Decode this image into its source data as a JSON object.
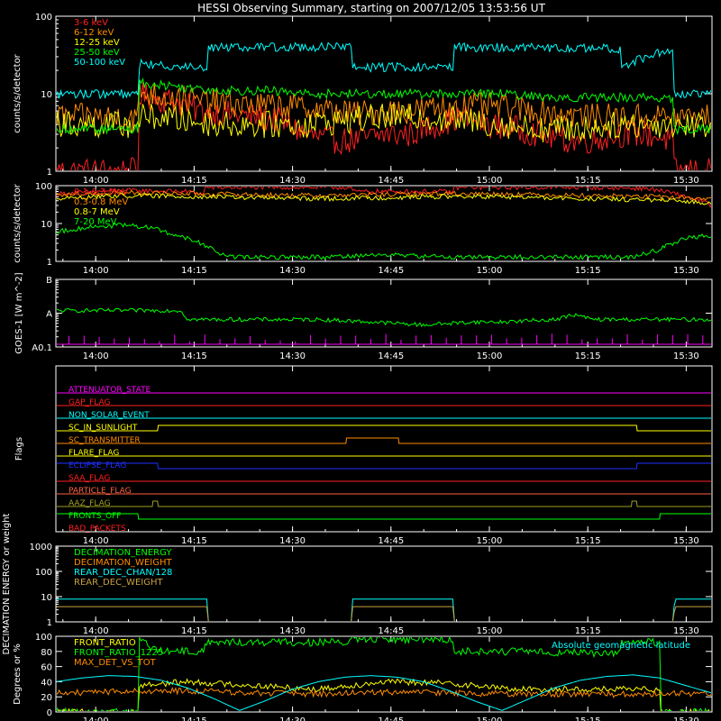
{
  "title": "HESSI Observing Summary, starting on 2007/12/05 13:53:56 UT",
  "colors": {
    "background": "#000000",
    "axes": "#ffffff",
    "red": "#ff2020",
    "orange": "#ff8c00",
    "yellow": "#ffff00",
    "green": "#00ff00",
    "cyan": "#00ffff",
    "magenta": "#ff00ff",
    "blue": "#2030ff",
    "olive": "#a0a020",
    "salmon": "#ff6040",
    "brown": "#c8a040"
  },
  "chart_data": [
    {
      "type": "line",
      "id": "lowenergy",
      "ylabel": "counts/s/detector",
      "yscale": "log",
      "ylim": [
        1,
        100
      ],
      "yticks": [
        1,
        10,
        100
      ],
      "ytick_labels": [
        "1",
        "10",
        "100"
      ],
      "x_ticks": [
        "14:00",
        "14:15",
        "14:30",
        "14:45",
        "15:00",
        "15:15",
        "15:30"
      ],
      "x_tick_minutes": [
        6.07,
        21.07,
        36.07,
        51.07,
        66.07,
        81.07,
        96.07
      ],
      "xlim_minutes": [
        0,
        100
      ],
      "legend_position": "top-left",
      "series": [
        {
          "name": "3-6 keV",
          "color": "red",
          "x": [
            0,
            12.5,
            12.6,
            14,
            18,
            22,
            26,
            30,
            34,
            38,
            42,
            46,
            50,
            54,
            58,
            62,
            66,
            70,
            74,
            78,
            82,
            86,
            90,
            94,
            94.1,
            100
          ],
          "y": [
            1,
            1,
            10,
            9,
            8,
            6,
            5.5,
            5,
            4.5,
            3,
            2.5,
            2.5,
            3,
            3,
            4,
            5,
            4,
            3.5,
            3,
            2.5,
            2.5,
            3,
            3,
            2.5,
            1,
            1
          ]
        },
        {
          "name": "6-12 keV",
          "color": "orange",
          "x": [
            0,
            12.5,
            12.6,
            14,
            18,
            22,
            26,
            30,
            34,
            38,
            42,
            46,
            50,
            54,
            58,
            62,
            66,
            70,
            74,
            78,
            82,
            86,
            90,
            94,
            94.1,
            100
          ],
          "y": [
            5,
            5,
            11,
            10,
            9,
            8,
            7.5,
            7,
            7,
            6.5,
            6,
            5.5,
            6,
            6,
            6.5,
            7,
            7,
            6.5,
            6,
            5.5,
            5,
            5,
            5,
            5,
            5,
            5
          ]
        },
        {
          "name": "12-25 keV",
          "color": "yellow",
          "x": [
            0,
            12.5,
            12.6,
            16,
            20,
            26,
            32,
            38,
            44,
            50,
            56,
            62,
            68,
            74,
            80,
            86,
            92,
            94,
            94.1,
            100
          ],
          "y": [
            4,
            4,
            5,
            5,
            4.5,
            4,
            4,
            4,
            4.5,
            5,
            5,
            4.5,
            4,
            3.5,
            3.5,
            4,
            4,
            4,
            4,
            4
          ]
        },
        {
          "name": "25-50 keV",
          "color": "green",
          "x": [
            0,
            12.5,
            12.6,
            16,
            20,
            26,
            32,
            38,
            44,
            50,
            56,
            62,
            68,
            74,
            80,
            86,
            92,
            94,
            94.1,
            100
          ],
          "y": [
            3.5,
            3.5,
            14,
            13,
            12,
            11,
            11,
            10,
            10,
            10,
            10,
            10,
            10,
            9,
            9,
            9,
            9,
            8,
            3.5,
            3.5
          ]
        },
        {
          "name": "50-100 keV",
          "color": "cyan",
          "x": [
            0,
            12.5,
            12.6,
            23,
            23.1,
            45,
            45.1,
            60.5,
            60.6,
            86,
            86.1,
            94,
            94.1,
            100
          ],
          "y": [
            10,
            10,
            24,
            22,
            40,
            40,
            22,
            22,
            40,
            38,
            22,
            38,
            10,
            10
          ]
        }
      ]
    },
    {
      "type": "line",
      "id": "highenergy",
      "ylabel": "counts/s/detector",
      "yscale": "log",
      "ylim": [
        1,
        100
      ],
      "yticks": [
        1,
        10,
        100
      ],
      "ytick_labels": [
        "1",
        "10",
        "100"
      ],
      "x_ticks": [
        "14:00",
        "14:15",
        "14:30",
        "14:45",
        "15:00",
        "15:15",
        "15:30"
      ],
      "x_tick_minutes": [
        6.07,
        21.07,
        36.07,
        51.07,
        66.07,
        81.07,
        96.07
      ],
      "xlim_minutes": [
        0,
        100
      ],
      "legend_position": "top-left",
      "series": [
        {
          "name": "0.1-0.3 MeV",
          "color": "red",
          "x": [
            0,
            10,
            20,
            22.5,
            22.6,
            45,
            45.1,
            60.5,
            60.6,
            80,
            90,
            100
          ],
          "y": [
            60,
            75,
            70,
            60,
            90,
            90,
            70,
            70,
            90,
            90,
            85,
            30
          ]
        },
        {
          "name": "0.3-0.8 MeV",
          "color": "orange",
          "x": [
            0,
            10,
            20,
            30,
            40,
            50,
            60,
            70,
            80,
            90,
            100
          ],
          "y": [
            55,
            65,
            62,
            58,
            55,
            58,
            62,
            60,
            55,
            52,
            45
          ]
        },
        {
          "name": "0.8-7 MeV",
          "color": "yellow",
          "x": [
            0,
            10,
            20,
            30,
            40,
            50,
            60,
            70,
            80,
            90,
            100
          ],
          "y": [
            45,
            55,
            52,
            48,
            45,
            48,
            52,
            50,
            45,
            42,
            35
          ]
        },
        {
          "name": "7-20 MeV",
          "color": "green",
          "x": [
            0,
            5,
            10,
            14,
            18,
            22,
            24,
            26,
            30,
            40,
            50,
            60,
            70,
            80,
            88,
            92,
            96,
            100
          ],
          "y": [
            6,
            8,
            9,
            8,
            5,
            3,
            2,
            1.3,
            1.3,
            1.3,
            1.5,
            1.3,
            1.3,
            1.3,
            1.3,
            2,
            4,
            5
          ]
        }
      ]
    },
    {
      "type": "line",
      "id": "goes",
      "ylabel": "GOES-1 [W m^-2]",
      "yscale": "log",
      "ylim": [
        0.1,
        10
      ],
      "yticks": [
        0.1,
        1,
        10
      ],
      "ytick_labels": [
        "A0.1",
        "A",
        "B"
      ],
      "x_ticks": [
        "14:00",
        "14:15",
        "14:30",
        "14:45",
        "15:00",
        "15:15",
        "15:30"
      ],
      "x_tick_minutes": [
        6.07,
        21.07,
        36.07,
        51.07,
        66.07,
        81.07,
        96.07
      ],
      "xlim_minutes": [
        0,
        100
      ],
      "series": [
        {
          "name": "",
          "color": "green",
          "x": [
            0,
            19,
            19.5,
            20,
            21,
            40,
            48,
            52,
            56,
            60,
            64,
            68,
            72,
            76,
            78,
            79,
            80,
            82,
            84,
            100
          ],
          "y": [
            1.2,
            1.2,
            0.9,
            0.7,
            0.65,
            0.65,
            0.55,
            0.5,
            0.45,
            0.5,
            0.55,
            0.55,
            0.6,
            0.65,
            0.8,
            0.9,
            0.8,
            0.65,
            0.65,
            0.65
          ]
        },
        {
          "name": "",
          "color": "magenta",
          "x": [
            0,
            100
          ],
          "y": [
            0.12,
            0.12
          ]
        }
      ]
    },
    {
      "type": "line",
      "id": "flags",
      "ylabel": "Flags",
      "x_ticks": [
        "14:00",
        "14:15",
        "14:30",
        "14:45",
        "15:00",
        "15:15",
        "15:30"
      ],
      "x_tick_minutes": [
        6.07,
        21.07,
        36.07,
        51.07,
        66.07,
        81.07,
        96.07
      ],
      "xlim_minutes": [
        0,
        100
      ],
      "flags": [
        {
          "name": "ATTENUATOR_STATE",
          "color": "magenta",
          "x": [
            0,
            100
          ],
          "y": [
            0,
            0
          ]
        },
        {
          "name": "GAP_FLAG",
          "color": "red",
          "x": [
            0,
            100
          ],
          "y": [
            0,
            0
          ]
        },
        {
          "name": "NON_SOLAR_EVENT",
          "color": "cyan",
          "x": [
            0,
            100
          ],
          "y": [
            0,
            0
          ]
        },
        {
          "name": "SC_IN_SUNLIGHT",
          "color": "yellow",
          "x": [
            0,
            15.5,
            15.6,
            88.5,
            88.6,
            100
          ],
          "y": [
            0,
            0,
            1,
            1,
            0,
            0
          ]
        },
        {
          "name": "SC_TRANSMITTER",
          "color": "orange",
          "x": [
            0,
            44.2,
            44.3,
            52.2,
            52.3,
            100
          ],
          "y": [
            0,
            0,
            1,
            1,
            0,
            0
          ]
        },
        {
          "name": "FLARE_FLAG",
          "color": "yellow",
          "x": [
            0,
            100
          ],
          "y": [
            0,
            0
          ]
        },
        {
          "name": "ECLIPSE_FLAG",
          "color": "blue",
          "x": [
            0,
            15.5,
            15.6,
            88.5,
            88.6,
            100
          ],
          "y": [
            1,
            1,
            0,
            0,
            1,
            1
          ]
        },
        {
          "name": "SAA_FLAG",
          "color": "red",
          "x": [
            0,
            100
          ],
          "y": [
            0,
            0
          ]
        },
        {
          "name": "PARTICLE_FLAG",
          "color": "salmon",
          "x": [
            0,
            100
          ],
          "y": [
            0,
            0
          ]
        },
        {
          "name": "AAZ_FLAG",
          "color": "olive",
          "x": [
            0,
            14.7,
            14.8,
            15.5,
            15.6,
            87.7,
            87.8,
            88.5,
            88.6,
            100
          ],
          "y": [
            0,
            0,
            1,
            1,
            0,
            0,
            1,
            1,
            0,
            0
          ]
        },
        {
          "name": "FRONTS_OFF",
          "color": "green",
          "x": [
            0,
            12.5,
            12.6,
            92,
            92.1,
            100
          ],
          "y": [
            1,
            1,
            0,
            0,
            1,
            1
          ]
        },
        {
          "name": "BAD_PACKETS",
          "color": "red",
          "x": [
            0,
            100
          ],
          "y": [
            0,
            0
          ]
        }
      ]
    },
    {
      "type": "line",
      "id": "decimation",
      "ylabel": "DECIMATION ENERGY or weight",
      "yscale": "log",
      "ylim": [
        1,
        1000
      ],
      "yticks": [
        1,
        10,
        100,
        1000
      ],
      "ytick_labels": [
        "1",
        "10",
        "100",
        "1000"
      ],
      "x_ticks": [
        "14:00",
        "14:15",
        "14:30",
        "14:45",
        "15:00",
        "15:15",
        "15:30"
      ],
      "x_tick_minutes": [
        6.07,
        21.07,
        36.07,
        51.07,
        66.07,
        81.07,
        96.07
      ],
      "xlim_minutes": [
        0,
        100
      ],
      "legend_position": "top-left",
      "series": [
        {
          "name": "DECIMATION_ENERGY",
          "color": "green",
          "x": [
            0,
            100
          ],
          "y": [
            1,
            1
          ]
        },
        {
          "name": "DECIMATION_WEIGHT",
          "color": "orange",
          "x": [
            0,
            100
          ],
          "y": [
            1,
            1
          ]
        },
        {
          "name": "REAR_DEC_CHAN/128",
          "color": "cyan",
          "x": [
            0,
            23,
            23.1,
            45,
            45.1,
            60.5,
            60.6,
            94.2,
            94.3,
            100
          ],
          "y": [
            8,
            8,
            1,
            1,
            8,
            8,
            1,
            1,
            8,
            8
          ]
        },
        {
          "name": "REAR_DEC_WEIGHT",
          "color": "brown",
          "x": [
            0,
            23,
            23.1,
            45,
            45.1,
            60.5,
            60.6,
            94.2,
            94.3,
            100
          ],
          "y": [
            4,
            4,
            1,
            1,
            4,
            4,
            1,
            1,
            4,
            4
          ]
        }
      ]
    },
    {
      "type": "line",
      "id": "ratios",
      "ylabel": "Degrees or %",
      "ylim": [
        0,
        100
      ],
      "yticks": [
        0,
        20,
        40,
        60,
        80,
        100
      ],
      "ytick_labels": [
        "0",
        "20",
        "40",
        "60",
        "80",
        "100"
      ],
      "x_ticks": [
        "14:00",
        "14:15",
        "14:30",
        "14:45",
        "15:00",
        "15:15",
        "15:30"
      ],
      "x_tick_minutes": [
        6.07,
        21.07,
        36.07,
        51.07,
        66.07,
        81.07,
        96.07
      ],
      "xlim_minutes": [
        0,
        100
      ],
      "legend_position": "top-left",
      "annotation": "Absolute geomagnetic latitude",
      "series": [
        {
          "name": "FRONT_RATIO",
          "color": "yellow",
          "x": [
            0,
            12.5,
            12.6,
            20,
            30,
            40,
            50,
            60,
            70,
            80,
            92,
            92.1,
            100
          ],
          "y": [
            0,
            0,
            35,
            40,
            35,
            30,
            40,
            38,
            30,
            30,
            30,
            0,
            0
          ]
        },
        {
          "name": "FRONT_RATIO_1225",
          "color": "green",
          "x": [
            0,
            12.5,
            12.6,
            16,
            20,
            22.5,
            22.6,
            45,
            45.1,
            60.5,
            60.6,
            70,
            80,
            86,
            86.1,
            92,
            92.1,
            100
          ],
          "y": [
            0,
            0,
            95,
            80,
            80,
            80,
            92,
            92,
            96,
            96,
            80,
            80,
            78,
            78,
            92,
            92,
            0,
            0
          ]
        },
        {
          "name": "MAX_DET_VS_TOT",
          "color": "orange",
          "x": [
            0,
            10,
            20,
            30,
            40,
            50,
            60,
            70,
            80,
            90,
            100
          ],
          "y": [
            25,
            27,
            28,
            25,
            24,
            26,
            25,
            24,
            23,
            24,
            25
          ]
        },
        {
          "name": "Absolute geomagnetic latitude",
          "color": "cyan",
          "x": [
            0,
            4,
            8,
            12,
            16,
            20,
            24,
            28,
            32,
            36,
            40,
            44,
            48,
            52,
            56,
            60,
            64,
            68,
            72,
            76,
            80,
            84,
            88,
            92,
            96,
            100
          ],
          "y": [
            40,
            45,
            48,
            47,
            42,
            32,
            18,
            2,
            15,
            30,
            40,
            46,
            48,
            46,
            40,
            28,
            14,
            2,
            17,
            32,
            42,
            47,
            49,
            45,
            35,
            25
          ]
        }
      ]
    }
  ]
}
